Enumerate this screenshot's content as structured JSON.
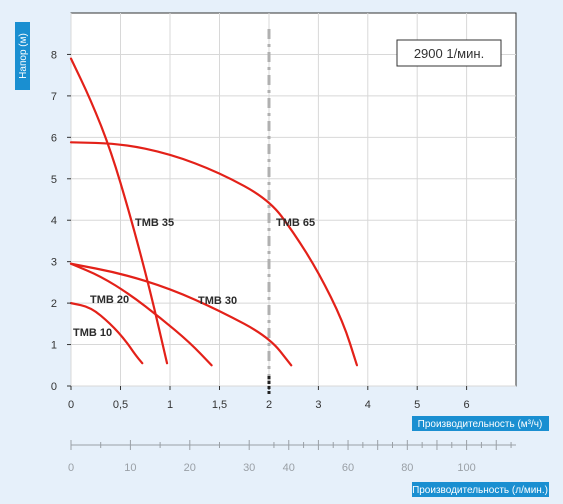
{
  "chart_data": {
    "type": "line",
    "speed_label": "2900 1/мин.",
    "ylabel": "Напор (м)",
    "xlabel": "Производительность (м³/ч)",
    "x2label": "Производительность (л/мин.)",
    "xlim": [
      0,
      7
    ],
    "ylim": [
      0,
      9
    ],
    "x_ticks": [
      "0",
      "0,5",
      "1",
      "1,5",
      "2",
      "3",
      "4",
      "5",
      "6"
    ],
    "y_ticks": [
      "0",
      "1",
      "2",
      "3",
      "4",
      "5",
      "6",
      "7",
      "8"
    ],
    "x2_ticks": [
      "0",
      "10",
      "20",
      "30",
      "40",
      "60",
      "80",
      "100"
    ],
    "reference_line_x": 2,
    "colors": {
      "curve": "#e32119",
      "accent": "#1a8fd1",
      "reference": "#b0b0b0"
    },
    "series": [
      {
        "name": "TMB 10",
        "x": [
          0,
          0.2,
          0.4,
          0.55,
          0.65,
          0.72
        ],
        "y": [
          2.0,
          1.9,
          1.5,
          1.1,
          0.75,
          0.55
        ]
      },
      {
        "name": "TMB 20",
        "x": [
          0,
          0.3,
          0.6,
          0.9,
          1.2,
          1.42
        ],
        "y": [
          2.95,
          2.65,
          2.2,
          1.65,
          1.05,
          0.5
        ]
      },
      {
        "name": "TMB 30",
        "x": [
          0,
          0.5,
          1.0,
          1.5,
          2.0,
          2.45
        ],
        "y": [
          2.95,
          2.72,
          2.35,
          1.82,
          1.18,
          0.5
        ]
      },
      {
        "name": "TMB 35",
        "x": [
          0,
          0.2,
          0.4,
          0.6,
          0.8,
          0.97
        ],
        "y": [
          7.9,
          6.9,
          5.7,
          4.1,
          2.3,
          0.55
        ]
      },
      {
        "name": "TMB 65",
        "x": [
          0,
          0.5,
          1.0,
          1.5,
          2.0,
          2.5,
          3.0,
          3.5,
          3.78
        ],
        "y": [
          5.88,
          5.85,
          5.6,
          5.15,
          4.5,
          3.7,
          2.75,
          1.55,
          0.5
        ]
      }
    ]
  }
}
